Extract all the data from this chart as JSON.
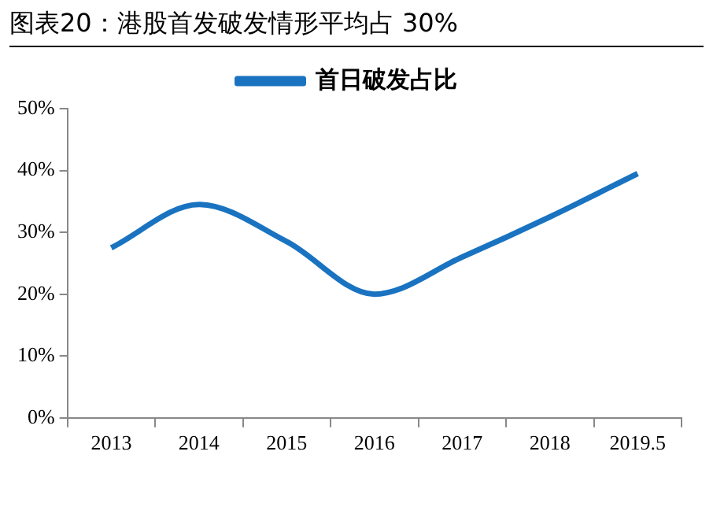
{
  "chart_data": {
    "type": "line",
    "title": "图表20：港股首发破发情形平均占 30%",
    "categories": [
      "2013",
      "2014",
      "2015",
      "2016",
      "2017",
      "2018",
      "2019.5"
    ],
    "series": [
      {
        "name": "首日破发占比",
        "color": "#1a73c0",
        "values": [
          27.5,
          34.5,
          28.5,
          20,
          26,
          32.5,
          39.5
        ]
      }
    ],
    "ylim": [
      0,
      50
    ],
    "yticks": [
      {
        "value": 0,
        "label": "0%"
      },
      {
        "value": 10,
        "label": "10%"
      },
      {
        "value": 20,
        "label": "20%"
      },
      {
        "value": 30,
        "label": "30%"
      },
      {
        "value": 40,
        "label": "40%"
      },
      {
        "value": 50,
        "label": "50%"
      }
    ],
    "grid": false,
    "legend": "top",
    "marker": "none"
  }
}
